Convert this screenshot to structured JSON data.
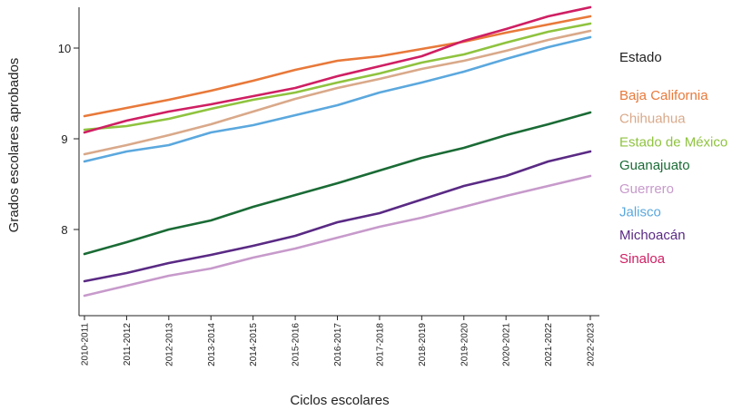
{
  "chart_data": {
    "type": "line",
    "xlabel": "Ciclos escolares",
    "ylabel": "Grados escolares aprobados",
    "categories": [
      "2010-2011",
      "2011-2012",
      "2012-2013",
      "2013-2014",
      "2014-2015",
      "2015-2016",
      "2016-2017",
      "2017-2018",
      "2018-2019",
      "2019-2020",
      "2020-2021",
      "2021-2022",
      "2022-2023"
    ],
    "ylim": [
      7.05,
      10.45
    ],
    "yticks": [
      8,
      9,
      10
    ],
    "grid": false,
    "legend": {
      "title": "Estado",
      "placement": "right"
    },
    "series": [
      {
        "name": "Baja California",
        "color": "#e8793a",
        "values": [
          9.25,
          9.34,
          9.43,
          9.53,
          9.64,
          9.76,
          9.86,
          9.91,
          9.99,
          10.07,
          10.17,
          10.26,
          10.35
        ]
      },
      {
        "name": "Chihuahua",
        "color": "#d9a98a",
        "values": [
          8.83,
          8.93,
          9.04,
          9.16,
          9.3,
          9.44,
          9.56,
          9.66,
          9.77,
          9.86,
          9.97,
          10.09,
          10.19
        ]
      },
      {
        "name": "Estado de México",
        "color": "#8fc33f",
        "values": [
          9.1,
          9.14,
          9.22,
          9.33,
          9.43,
          9.51,
          9.62,
          9.72,
          9.84,
          9.93,
          10.06,
          10.18,
          10.27
        ]
      },
      {
        "name": "Guanajuato",
        "color": "#1a6b35",
        "values": [
          7.73,
          7.86,
          8.0,
          8.1,
          8.25,
          8.38,
          8.51,
          8.65,
          8.79,
          8.9,
          9.04,
          9.16,
          9.29
        ]
      },
      {
        "name": "Guerrero",
        "color": "#c79acb",
        "values": [
          7.27,
          7.38,
          7.49,
          7.57,
          7.69,
          7.79,
          7.91,
          8.03,
          8.13,
          8.25,
          8.37,
          8.48,
          8.59
        ]
      },
      {
        "name": "Jalisco",
        "color": "#5ba8de",
        "values": [
          8.75,
          8.86,
          8.93,
          9.07,
          9.15,
          9.26,
          9.37,
          9.51,
          9.62,
          9.74,
          9.88,
          10.01,
          10.12
        ]
      },
      {
        "name": "Michoacán",
        "color": "#5a2a84",
        "values": [
          7.43,
          7.52,
          7.63,
          7.72,
          7.82,
          7.93,
          8.08,
          8.18,
          8.33,
          8.48,
          8.59,
          8.75,
          8.86
        ]
      },
      {
        "name": "Sinaloa",
        "color": "#cf1f63",
        "values": [
          9.07,
          9.2,
          9.3,
          9.38,
          9.47,
          9.56,
          9.69,
          9.8,
          9.91,
          10.08,
          10.21,
          10.35,
          10.45
        ]
      }
    ]
  }
}
